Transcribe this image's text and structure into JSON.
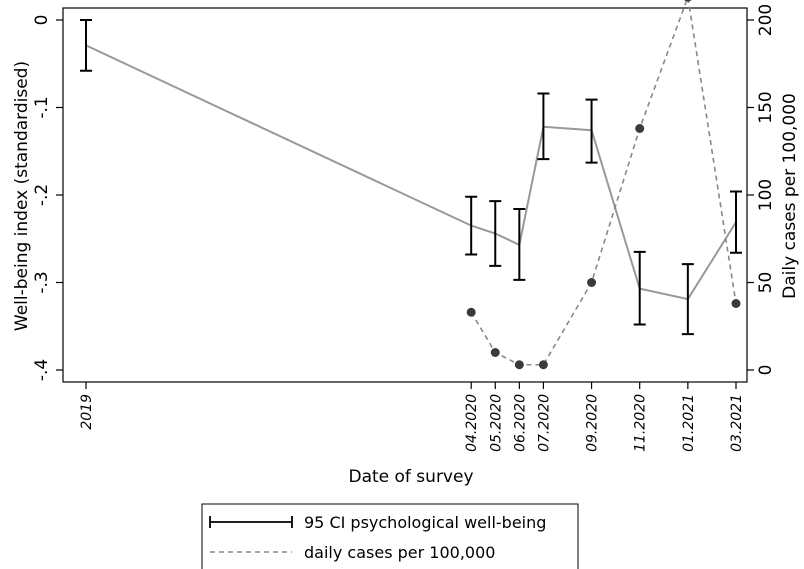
{
  "chart_data": {
    "type": "line",
    "xlabel": "Date of survey",
    "ylabel_left": "Well-being index (standardised)",
    "ylabel_right": "Daily cases per 100,000",
    "ylim_left": [
      -0.4,
      0
    ],
    "ylim_right": [
      0,
      200
    ],
    "yticks_left": [
      0,
      -0.1,
      -0.2,
      -0.3,
      -0.4
    ],
    "yticks_left_labels": [
      "0",
      "-.1",
      "-.2",
      "-.3",
      "-.4"
    ],
    "yticks_right": [
      0,
      50,
      100,
      150,
      200
    ],
    "yticks_right_labels": [
      "0",
      "50",
      "100",
      "150",
      "200"
    ],
    "x_dates": [
      "2019",
      "04.2020",
      "05.2020",
      "06.2020",
      "07.2020",
      "09.2020",
      "11.2020",
      "01.2021",
      "03.2021"
    ],
    "x_months": [
      0,
      16,
      17,
      18,
      19,
      21,
      23,
      25,
      27
    ],
    "grid": false,
    "series": [
      {
        "name": "95 CI psychological well-being",
        "axis": "left",
        "color": "#999999",
        "x": [
          "2019",
          "04.2020",
          "05.2020",
          "06.2020",
          "07.2020",
          "09.2020",
          "11.2020",
          "01.2021",
          "03.2021"
        ],
        "mean": [
          -0.029,
          -0.235,
          -0.244,
          -0.257,
          -0.122,
          -0.126,
          -0.307,
          -0.319,
          -0.231
        ],
        "ci_low": [
          -0.058,
          -0.268,
          -0.281,
          -0.297,
          -0.159,
          -0.163,
          -0.348,
          -0.359,
          -0.266
        ],
        "ci_high": [
          0.0,
          -0.202,
          -0.207,
          -0.216,
          -0.084,
          -0.091,
          -0.265,
          -0.279,
          -0.196
        ]
      },
      {
        "name": "daily cases per 100,000",
        "axis": "right",
        "color": "#888888",
        "style": "dashed",
        "x": [
          "04.2020",
          "05.2020",
          "06.2020",
          "07.2020",
          "09.2020",
          "11.2020",
          "01.2021",
          "03.2021"
        ],
        "values": [
          33,
          10,
          3,
          3,
          50,
          138,
          213,
          38
        ]
      }
    ],
    "legend": {
      "position": "bottom",
      "entries": [
        "95 CI psychological well-being",
        "daily cases per 100,000"
      ]
    }
  }
}
